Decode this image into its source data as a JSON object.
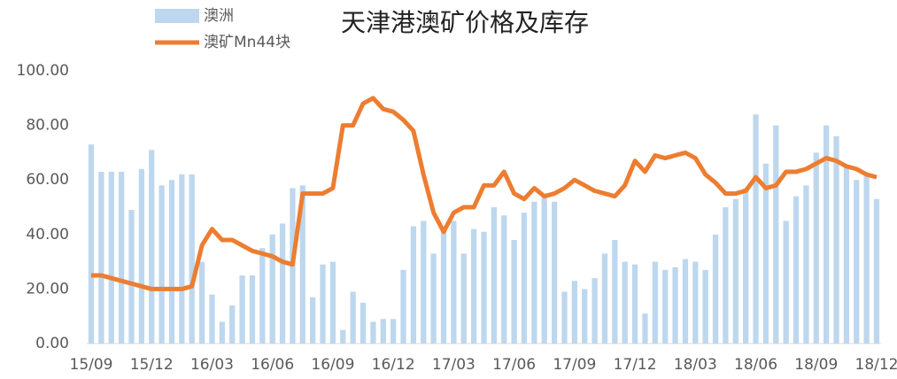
{
  "chart_data": {
    "type": "bar_line",
    "title": "天津港澳矿价格及库存",
    "categories": [
      "15/09",
      null,
      null,
      null,
      null,
      null,
      "15/12",
      null,
      null,
      null,
      null,
      null,
      "16/03",
      null,
      null,
      null,
      null,
      null,
      "16/06",
      null,
      null,
      null,
      null,
      null,
      "16/09",
      null,
      null,
      null,
      null,
      null,
      "16/12",
      null,
      null,
      null,
      null,
      null,
      "17/03",
      null,
      null,
      null,
      null,
      null,
      "17/06",
      null,
      null,
      null,
      null,
      null,
      "17/09",
      null,
      null,
      null,
      null,
      null,
      "17/12",
      null,
      null,
      null,
      null,
      null,
      "18/03",
      null,
      null,
      null,
      null,
      null,
      "18/06",
      null,
      null,
      null,
      null,
      null,
      "18/09",
      null,
      null,
      null,
      null,
      null,
      "18/12"
    ],
    "series": [
      {
        "name": "澳洲",
        "type": "bar",
        "color": "#bdd7ee",
        "values": [
          73,
          63,
          63,
          63,
          49,
          64,
          71,
          58,
          60,
          62,
          62,
          30,
          18,
          8,
          14,
          25,
          25,
          35,
          40,
          44,
          57,
          58,
          17,
          29,
          30,
          5,
          19,
          15,
          8,
          9,
          9,
          27,
          43,
          45,
          33,
          43,
          45,
          33,
          42,
          41,
          50,
          47,
          38,
          48,
          52,
          55,
          52,
          19,
          23,
          20,
          24,
          33,
          38,
          30,
          29,
          11,
          30,
          27,
          28,
          31,
          30,
          27,
          40,
          50,
          53,
          57,
          84,
          66,
          80,
          45,
          54,
          58,
          70,
          80,
          76,
          65,
          60,
          62,
          53
        ]
      },
      {
        "name": "澳矿Mn44块",
        "type": "line",
        "color": "#ed7d31",
        "values": [
          25,
          25,
          24,
          23,
          22,
          21,
          20,
          20,
          20,
          20,
          21,
          36,
          42,
          38,
          38,
          36,
          34,
          33,
          32,
          30,
          29,
          55,
          55,
          55,
          57,
          80,
          80,
          88,
          90,
          86,
          85,
          82,
          78,
          62,
          48,
          41,
          48,
          50,
          50,
          58,
          58,
          63,
          55,
          53,
          57,
          54,
          55,
          57,
          60,
          58,
          56,
          55,
          54,
          58,
          67,
          63,
          69,
          68,
          69,
          70,
          68,
          62,
          59,
          55,
          55,
          56,
          61,
          57,
          58,
          63,
          63,
          64,
          66,
          68,
          67,
          65,
          64,
          62,
          61
        ]
      }
    ],
    "ylim": [
      0,
      100
    ],
    "yticks": [
      {
        "value": 0,
        "label": "0.00"
      },
      {
        "value": 20,
        "label": "20.00"
      },
      {
        "value": 40,
        "label": "40.00"
      },
      {
        "value": 60,
        "label": "60.00"
      },
      {
        "value": 80,
        "label": "80.00"
      },
      {
        "value": 100,
        "label": "100.00"
      }
    ]
  }
}
